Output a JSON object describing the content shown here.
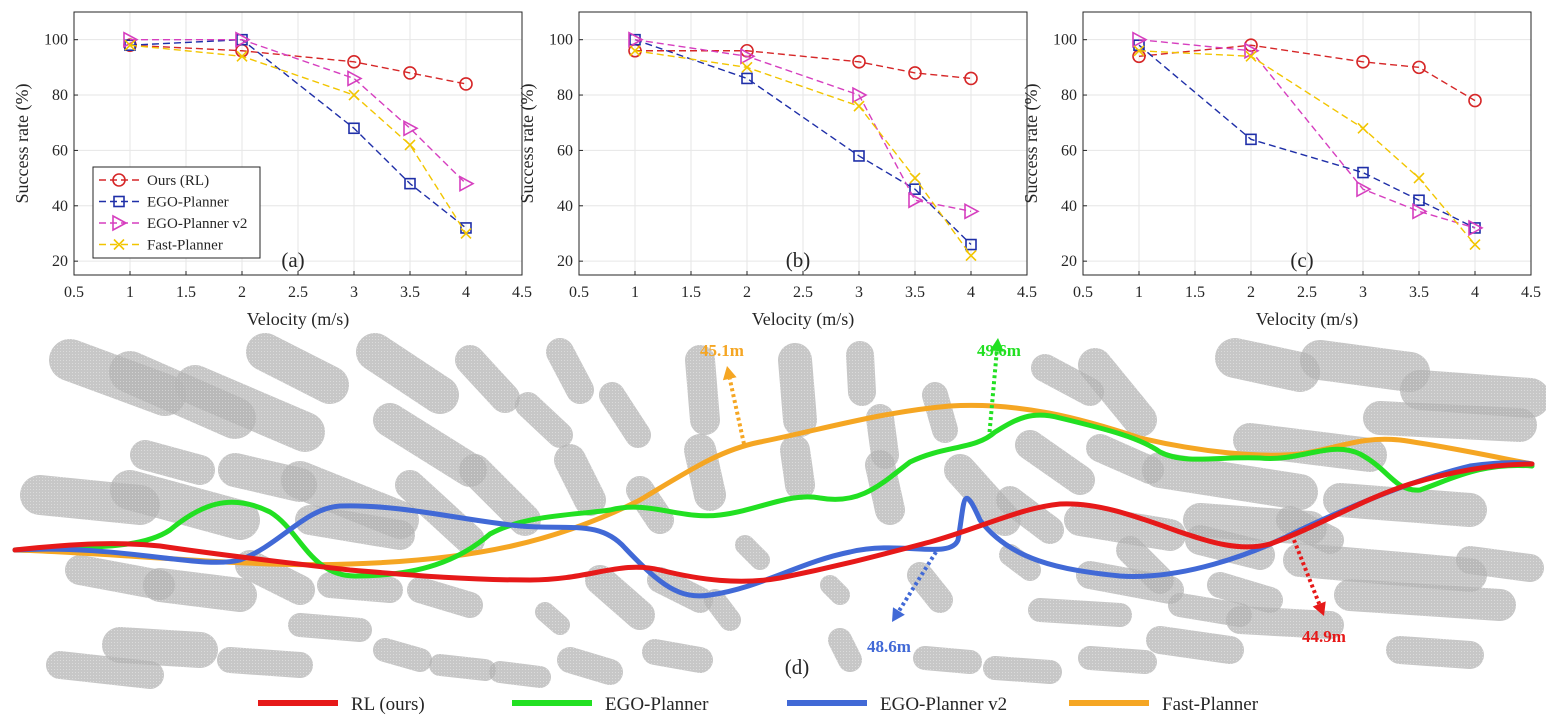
{
  "colors": {
    "rl": "#d62728",
    "ego": "#1f2fa8",
    "egov2": "#d63fbf",
    "fast": "#f2c500",
    "traj_rl": "#e61919",
    "traj_ego": "#22e022",
    "traj_egov2": "#4169d6",
    "traj_fast": "#f5a623",
    "obstacle": "#a9a9a9",
    "grid": "#e6e6e6"
  },
  "chart_data": [
    {
      "type": "line",
      "panel_label": "(a)",
      "xlabel": "Velocity (m/s)",
      "ylabel": "Success rate (%)",
      "xlim": [
        0.5,
        4.5
      ],
      "ylim": [
        15,
        110
      ],
      "xticks": [
        "0.5",
        "1",
        "1.5",
        "2",
        "2.5",
        "3",
        "3.5",
        "4",
        "4.5"
      ],
      "yticks": [
        "20",
        "40",
        "60",
        "80",
        "100"
      ],
      "grid": true,
      "legend": "bottom-left",
      "x": [
        1,
        2,
        3,
        3.5,
        4
      ],
      "series": [
        {
          "name": "Ours (RL)",
          "values": [
            98,
            96,
            92,
            88,
            84
          ],
          "marker": "circle",
          "color_key": "rl"
        },
        {
          "name": "EGO-Planner",
          "values": [
            98,
            100,
            68,
            48,
            32
          ],
          "marker": "square",
          "color_key": "ego"
        },
        {
          "name": "EGO-Planner v2",
          "values": [
            100,
            100,
            86,
            68,
            48
          ],
          "marker": "triangle-right",
          "color_key": "egov2"
        },
        {
          "name": "Fast-Planner",
          "values": [
            98,
            94,
            80,
            62,
            30
          ],
          "marker": "x",
          "color_key": "fast"
        }
      ]
    },
    {
      "type": "line",
      "panel_label": "(b)",
      "xlabel": "Velocity (m/s)",
      "ylabel": "Success rate (%)",
      "xlim": [
        0.5,
        4.5
      ],
      "ylim": [
        15,
        110
      ],
      "xticks": [
        "0.5",
        "1",
        "1.5",
        "2",
        "2.5",
        "3",
        "3.5",
        "4",
        "4.5"
      ],
      "yticks": [
        "20",
        "40",
        "60",
        "80",
        "100"
      ],
      "grid": true,
      "x": [
        1,
        2,
        3,
        3.5,
        4
      ],
      "series": [
        {
          "name": "Ours (RL)",
          "values": [
            96,
            96,
            92,
            88,
            86
          ],
          "marker": "circle",
          "color_key": "rl"
        },
        {
          "name": "EGO-Planner",
          "values": [
            100,
            86,
            58,
            46,
            26
          ],
          "marker": "square",
          "color_key": "ego"
        },
        {
          "name": "EGO-Planner v2",
          "values": [
            100,
            94,
            80,
            42,
            38
          ],
          "marker": "triangle-right",
          "color_key": "egov2"
        },
        {
          "name": "Fast-Planner",
          "values": [
            96,
            90,
            76,
            50,
            22
          ],
          "marker": "x",
          "color_key": "fast"
        }
      ]
    },
    {
      "type": "line",
      "panel_label": "(c)",
      "xlabel": "Velocity (m/s)",
      "ylabel": "Success rate (%)",
      "xlim": [
        0.5,
        4.5
      ],
      "ylim": [
        15,
        110
      ],
      "xticks": [
        "0.5",
        "1",
        "1.5",
        "2",
        "2.5",
        "3",
        "3.5",
        "4",
        "4.5"
      ],
      "yticks": [
        "20",
        "40",
        "60",
        "80",
        "100"
      ],
      "grid": true,
      "x": [
        1,
        2,
        3,
        3.5,
        4
      ],
      "series": [
        {
          "name": "Ours (RL)",
          "values": [
            94,
            98,
            92,
            90,
            78
          ],
          "marker": "circle",
          "color_key": "rl"
        },
        {
          "name": "EGO-Planner",
          "values": [
            98,
            64,
            52,
            42,
            32
          ],
          "marker": "square",
          "color_key": "ego"
        },
        {
          "name": "EGO-Planner v2",
          "values": [
            100,
            96,
            46,
            38,
            32
          ],
          "marker": "triangle-right",
          "color_key": "egov2"
        },
        {
          "name": "Fast-Planner",
          "values": [
            96,
            94,
            68,
            50,
            26
          ],
          "marker": "x",
          "color_key": "fast"
        }
      ]
    }
  ],
  "scene": {
    "panel_label": "(d)",
    "distance_labels": {
      "fast": "45.1m",
      "ego": "49.6m",
      "egov2": "48.6m",
      "rl": "44.9m"
    },
    "legend": [
      {
        "label": "RL (ours)",
        "color_key": "traj_rl"
      },
      {
        "label": "EGO-Planner",
        "color_key": "traj_ego"
      },
      {
        "label": "EGO-Planner v2",
        "color_key": "traj_egov2"
      },
      {
        "label": "Fast-Planner",
        "color_key": "traj_fast"
      }
    ]
  }
}
